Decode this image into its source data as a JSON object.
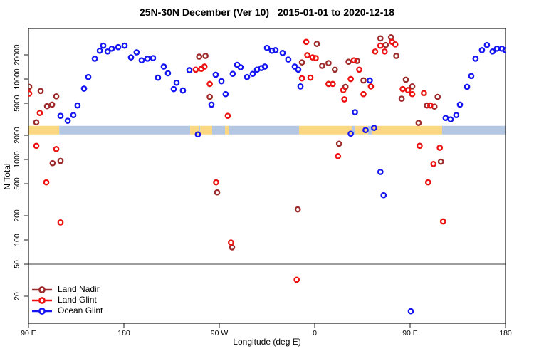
{
  "title": "25N-30N December (Ver 10)   2015-01-01 to 2020-12-18",
  "legend": {
    "items": [
      {
        "label": "Land Nadir"
      },
      {
        "label": "Land Glint"
      },
      {
        "label": "Ocean Glint"
      }
    ]
  },
  "chart_data": {
    "type": "scatter",
    "title": "25N-30N December (Ver 10)   2015-01-01 to 2020-12-18",
    "xlabel": "Longitude (deg E)",
    "ylabel": "N Total",
    "y_scale": "log",
    "y_ticks": [
      {
        "v": 20000,
        "label": "20000"
      },
      {
        "v": 10000,
        "label": "10000"
      },
      {
        "v": 5000,
        "label": "5000"
      },
      {
        "v": 2000,
        "label": "2000"
      },
      {
        "v": 1000,
        "label": "1000"
      },
      {
        "v": 500,
        "label": "500"
      },
      {
        "v": 200,
        "label": "200"
      },
      {
        "v": 100,
        "label": "100"
      },
      {
        "v": 50,
        "label": "50"
      },
      {
        "v": 20,
        "label": "20"
      }
    ],
    "x_axis_span_deg": 450,
    "x_ticks": [
      {
        "deg": 0,
        "label": "90 E"
      },
      {
        "deg": 90,
        "label": "180"
      },
      {
        "deg": 180,
        "label": "90 W"
      },
      {
        "deg": 270,
        "label": "0"
      },
      {
        "deg": 360,
        "label": "90 E"
      },
      {
        "deg": 450,
        "label": "180"
      }
    ],
    "reference_line": {
      "value": 50,
      "color": "#7d7d7d"
    },
    "coast_band": {
      "top_value": 2620,
      "bottom_value": 2050,
      "land_color": "#FBD782",
      "ocean_color": "#B3C6E2",
      "segments": [
        {
          "from": 0,
          "to": 29,
          "type": "land"
        },
        {
          "from": 29,
          "to": 152.5,
          "type": "ocean"
        },
        {
          "from": 152.5,
          "to": 160.5,
          "type": "land"
        },
        {
          "from": 160.5,
          "to": 162,
          "type": "ocean"
        },
        {
          "from": 162,
          "to": 173.3,
          "type": "land"
        },
        {
          "from": 173.3,
          "to": 185.4,
          "type": "ocean"
        },
        {
          "from": 185.4,
          "to": 189.4,
          "type": "land"
        },
        {
          "from": 189.4,
          "to": 255.2,
          "type": "ocean"
        },
        {
          "from": 255.2,
          "to": 304.9,
          "type": "land"
        },
        {
          "from": 304.9,
          "to": 308.3,
          "type": "ocean"
        },
        {
          "from": 308.3,
          "to": 320.3,
          "type": "land"
        },
        {
          "from": 320.3,
          "to": 323.7,
          "type": "ocean"
        },
        {
          "from": 323.7,
          "to": 390.2,
          "type": "land"
        },
        {
          "from": 390.2,
          "to": 450,
          "type": "ocean"
        }
      ]
    },
    "series": [
      {
        "name": "Land Nadir",
        "color": "#9E2B2B",
        "points": [
          [
            0.7,
            8000
          ],
          [
            11.4,
            7100
          ],
          [
            26.2,
            6100
          ],
          [
            17.5,
            4600
          ],
          [
            22.2,
            4800
          ],
          [
            7.4,
            2900
          ],
          [
            22.8,
            900
          ],
          [
            30.2,
            960
          ],
          [
            161,
            19000
          ],
          [
            167,
            19400
          ],
          [
            171,
            6000
          ],
          [
            178,
            390
          ],
          [
            192,
            81
          ],
          [
            258,
            16100
          ],
          [
            254,
            240
          ],
          [
            272,
            27400
          ],
          [
            277,
            14600
          ],
          [
            283,
            15800
          ],
          [
            289,
            13100
          ],
          [
            293,
            1570
          ],
          [
            299,
            8000
          ],
          [
            302,
            16400
          ],
          [
            310,
            16800
          ],
          [
            316,
            9600
          ],
          [
            332,
            32000
          ],
          [
            342,
            33000
          ],
          [
            337,
            26500
          ],
          [
            347,
            19400
          ],
          [
            352,
            5700
          ],
          [
            356,
            9800
          ],
          [
            362,
            8100
          ],
          [
            368,
            2850
          ],
          [
            376,
            4700
          ],
          [
            383,
            4550
          ],
          [
            386,
            6000
          ],
          [
            389,
            940
          ]
        ]
      },
      {
        "name": "Land Glint",
        "color": "#EE1111",
        "points": [
          [
            0.7,
            6600
          ],
          [
            10.7,
            3790
          ],
          [
            7.4,
            1480
          ],
          [
            26.2,
            1350
          ],
          [
            16.8,
            520
          ],
          [
            30.2,
            165
          ],
          [
            157.8,
            13100
          ],
          [
            163,
            13400
          ],
          [
            166,
            14300
          ],
          [
            171,
            8700
          ],
          [
            188,
            3490
          ],
          [
            177,
            520
          ],
          [
            191,
            93
          ],
          [
            262,
            29000
          ],
          [
            263,
            19800
          ],
          [
            268,
            18600
          ],
          [
            271,
            18200
          ],
          [
            258,
            10200
          ],
          [
            266,
            10400
          ],
          [
            283,
            8700
          ],
          [
            287,
            8700
          ],
          [
            297,
            7300
          ],
          [
            298,
            5600
          ],
          [
            292,
            1100
          ],
          [
            253,
            32
          ],
          [
            307,
            17100
          ],
          [
            312,
            13100
          ],
          [
            304,
            10000
          ],
          [
            316,
            6500
          ],
          [
            323,
            8100
          ],
          [
            327,
            22000
          ],
          [
            332,
            26000
          ],
          [
            336,
            22000
          ],
          [
            343,
            29000
          ],
          [
            346,
            27000
          ],
          [
            353,
            7500
          ],
          [
            358,
            7300
          ],
          [
            362,
            6500
          ],
          [
            373,
            6700
          ],
          [
            379,
            4700
          ],
          [
            369,
            1480
          ],
          [
            388,
            1400
          ],
          [
            382,
            880
          ],
          [
            377,
            520
          ],
          [
            391,
            170
          ]
        ]
      },
      {
        "name": "Ocean Glint",
        "color": "#1515F2",
        "points": [
          [
            30.2,
            3490
          ],
          [
            37,
            3030
          ],
          [
            42.3,
            3560
          ],
          [
            46.3,
            4700
          ],
          [
            52.4,
            7600
          ],
          [
            56.4,
            10600
          ],
          [
            62.5,
            17900
          ],
          [
            67.2,
            22500
          ],
          [
            70.5,
            26000
          ],
          [
            74.6,
            22000
          ],
          [
            78.6,
            23900
          ],
          [
            84.6,
            24900
          ],
          [
            90.7,
            26000
          ],
          [
            96.7,
            18600
          ],
          [
            102,
            21500
          ],
          [
            106.8,
            17100
          ],
          [
            112.2,
            17900
          ],
          [
            117.5,
            18200
          ],
          [
            122.2,
            10400
          ],
          [
            127.6,
            14300
          ],
          [
            131.6,
            11800
          ],
          [
            137,
            7500
          ],
          [
            139.7,
            9000
          ],
          [
            145.7,
            7200
          ],
          [
            151.8,
            12900
          ],
          [
            159.8,
            2050
          ],
          [
            172.6,
            4800
          ],
          [
            176.6,
            11300
          ],
          [
            182,
            9400
          ],
          [
            186,
            6500
          ],
          [
            192.7,
            11600
          ],
          [
            196.8,
            15000
          ],
          [
            200.1,
            14000
          ],
          [
            206.2,
            10600
          ],
          [
            211.6,
            11600
          ],
          [
            215.6,
            13100
          ],
          [
            219.6,
            13700
          ],
          [
            223,
            14300
          ],
          [
            225,
            24400
          ],
          [
            229.7,
            22500
          ],
          [
            233,
            22900
          ],
          [
            239.8,
            21100
          ],
          [
            245.1,
            17500
          ],
          [
            251.2,
            14300
          ],
          [
            254.5,
            13100
          ],
          [
            256.6,
            8100
          ],
          [
            304,
            2090
          ],
          [
            308,
            3870
          ],
          [
            318,
            2320
          ],
          [
            326,
            2470
          ],
          [
            322,
            9600
          ],
          [
            332,
            700
          ],
          [
            335,
            360
          ],
          [
            360.7,
            13
          ],
          [
            393.5,
            3280
          ],
          [
            398.2,
            3150
          ],
          [
            403.6,
            3560
          ],
          [
            407,
            4800
          ],
          [
            413.7,
            8000
          ],
          [
            417.7,
            10900
          ],
          [
            421.7,
            17900
          ],
          [
            427.8,
            22900
          ],
          [
            432.5,
            26500
          ],
          [
            437.8,
            22000
          ],
          [
            441.9,
            23900
          ],
          [
            446.6,
            23900
          ],
          [
            450,
            22900
          ]
        ]
      }
    ]
  }
}
